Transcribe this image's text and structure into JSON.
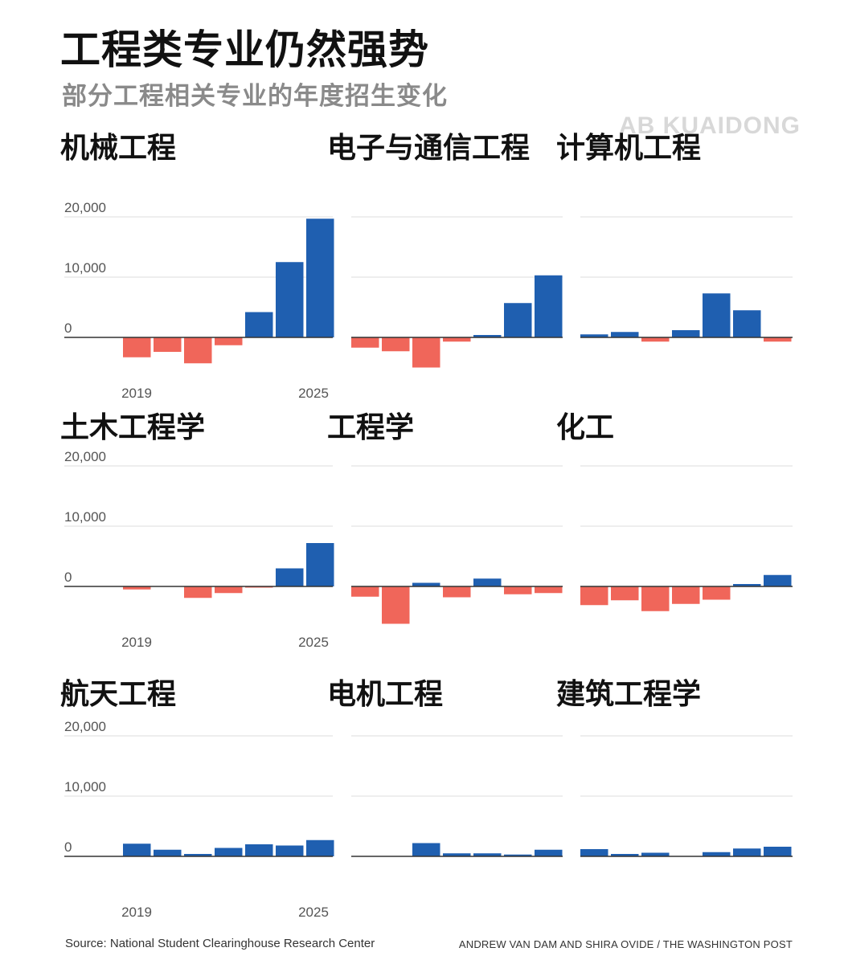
{
  "title": "工程类专业仍然强势",
  "subtitle": "部分工程相关专业的年度招生变化",
  "watermark": "AB KUAIDONG",
  "source": "Source: National Student Clearinghouse Research Center",
  "credit": "ANDREW VAN DAM AND SHIRA OVIDE / THE WASHINGTON POST",
  "colors": {
    "positive": "#1f5fb0",
    "negative": "#f0665a",
    "grid": "#e3e3e3",
    "axis": "#333333"
  },
  "chart_data": [
    {
      "type": "bar",
      "title": "机械工程",
      "ylim": [
        -7000,
        20000
      ],
      "yticks": [
        "20,000",
        "10,000",
        "0"
      ],
      "xticks": [
        "2019",
        "2025"
      ],
      "categories": [
        "2018",
        "2019",
        "2020",
        "2021",
        "2022",
        "2023",
        "2024",
        "2025"
      ],
      "values": [
        0,
        -3300,
        -2400,
        -4300,
        -1300,
        4200,
        12500,
        19700
      ]
    },
    {
      "type": "bar",
      "title": "电子与通信工程",
      "ylim": [
        -7000,
        20000
      ],
      "yticks": [],
      "xticks": [],
      "categories": [
        "2018",
        "2019",
        "2020",
        "2021",
        "2022",
        "2023",
        "2024",
        "2025"
      ],
      "values": [
        -1700,
        -2300,
        -5000,
        -700,
        400,
        5700,
        10300,
        null
      ]
    },
    {
      "type": "bar",
      "title": "计算机工程",
      "ylim": [
        -7000,
        20000
      ],
      "yticks": [],
      "xticks": [],
      "categories": [
        "2018",
        "2019",
        "2020",
        "2021",
        "2022",
        "2023",
        "2024",
        "2025"
      ],
      "values": [
        500,
        900,
        -700,
        1200,
        7300,
        4500,
        -700,
        null
      ]
    },
    {
      "type": "bar",
      "title": "土木工程学",
      "ylim": [
        -7000,
        20000
      ],
      "yticks": [
        "20,000",
        "10,000",
        "0"
      ],
      "xticks": [
        "2019",
        "2025"
      ],
      "categories": [
        "2018",
        "2019",
        "2020",
        "2021",
        "2022",
        "2023",
        "2024",
        "2025"
      ],
      "values": [
        0,
        -500,
        0,
        -1900,
        -1100,
        -200,
        3000,
        7200
      ]
    },
    {
      "type": "bar",
      "title": "工程学",
      "ylim": [
        -7000,
        20000
      ],
      "yticks": [],
      "xticks": [],
      "categories": [
        "2018",
        "2019",
        "2020",
        "2021",
        "2022",
        "2023",
        "2024",
        "2025"
      ],
      "values": [
        -1700,
        -6200,
        600,
        -1800,
        1300,
        -1300,
        -1100,
        null
      ]
    },
    {
      "type": "bar",
      "title": "化工",
      "ylim": [
        -7000,
        20000
      ],
      "yticks": [],
      "xticks": [],
      "categories": [
        "2018",
        "2019",
        "2020",
        "2021",
        "2022",
        "2023",
        "2024",
        "2025"
      ],
      "values": [
        -3100,
        -2300,
        -4100,
        -2900,
        -2200,
        400,
        1900,
        null
      ]
    },
    {
      "type": "bar",
      "title": "航天工程",
      "ylim": [
        -7000,
        20000
      ],
      "yticks": [
        "20,000",
        "10,000",
        "0"
      ],
      "xticks": [
        "2019",
        "2025"
      ],
      "categories": [
        "2018",
        "2019",
        "2020",
        "2021",
        "2022",
        "2023",
        "2024",
        "2025"
      ],
      "values": [
        0,
        2100,
        1100,
        400,
        1400,
        2000,
        1800,
        2700
      ]
    },
    {
      "type": "bar",
      "title": "电机工程",
      "ylim": [
        -7000,
        20000
      ],
      "yticks": [],
      "xticks": [],
      "categories": [
        "2018",
        "2019",
        "2020",
        "2021",
        "2022",
        "2023",
        "2024",
        "2025"
      ],
      "values": [
        0,
        0,
        2200,
        500,
        500,
        300,
        1100,
        null
      ]
    },
    {
      "type": "bar",
      "title": "建筑工程学",
      "ylim": [
        -7000,
        20000
      ],
      "yticks": [],
      "xticks": [],
      "categories": [
        "2018",
        "2019",
        "2020",
        "2021",
        "2022",
        "2023",
        "2024",
        "2025"
      ],
      "values": [
        1200,
        400,
        600,
        0,
        700,
        1300,
        1600,
        null
      ]
    }
  ]
}
